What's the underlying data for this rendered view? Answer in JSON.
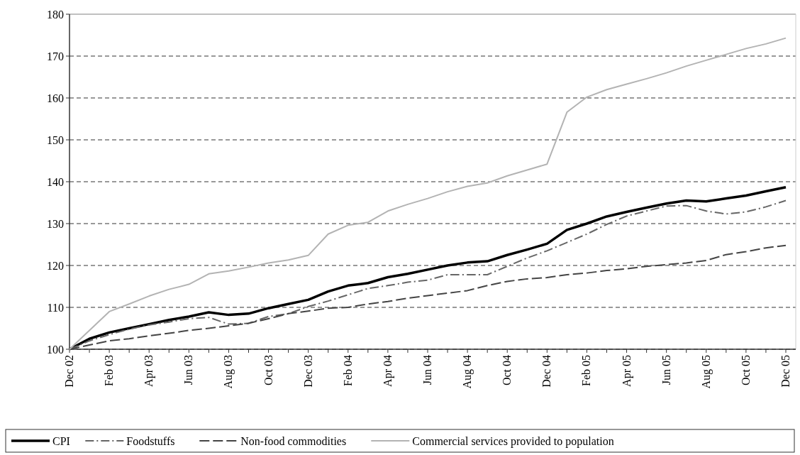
{
  "chart_data": {
    "type": "line",
    "categories": [
      "Dec 02",
      null,
      "Feb 03",
      null,
      "Apr 03",
      null,
      "Jun 03",
      null,
      "Aug 03",
      null,
      "Oct 03",
      null,
      "Dec 03",
      null,
      "Feb 04",
      null,
      "Apr 04",
      null,
      "Jun 04",
      null,
      "Aug 04",
      null,
      "Oct 04",
      null,
      "Dec 04",
      null,
      "Feb 05",
      null,
      "Apr 05",
      null,
      "Jun 05",
      null,
      "Aug 05",
      null,
      "Oct 05",
      null,
      "Dec 05"
    ],
    "series": [
      {
        "name": "CPI",
        "color": "#000000",
        "line_style": "solid",
        "values": [
          100,
          102.5,
          104,
          105,
          106,
          107,
          107.8,
          108.8,
          108.2,
          108.5,
          109.8,
          110.8,
          111.8,
          113.8,
          115.2,
          115.8,
          117.2,
          118,
          119,
          120,
          120.7,
          121,
          122.5,
          123.8,
          125.2,
          128.5,
          130,
          131.7,
          132.8,
          133.8,
          134.8,
          135.5,
          135.3,
          136,
          136.7,
          137.7,
          138.7
        ]
      },
      {
        "name": "Foodstuffs",
        "color": "#666666",
        "line_style": "dashdot",
        "values": [
          100,
          102,
          103.5,
          104.8,
          105.8,
          106.5,
          107.3,
          107.6,
          106,
          106.2,
          107.8,
          108.5,
          110.2,
          111.5,
          113,
          114.5,
          115.2,
          116,
          116.5,
          117.8,
          117.8,
          117.8,
          119.8,
          121.8,
          123.5,
          125.5,
          127.5,
          129.8,
          131.8,
          133,
          134.2,
          134.3,
          133,
          132.3,
          132.8,
          134,
          135.5
        ]
      },
      {
        "name": "Non-food commodities",
        "color": "#444444",
        "line_style": "dashed",
        "values": [
          100,
          101,
          102,
          102.5,
          103.2,
          103.8,
          104.5,
          105,
          105.6,
          106.2,
          107.3,
          108.5,
          109.1,
          109.8,
          110,
          110.8,
          111.4,
          112.2,
          112.8,
          113.4,
          114,
          115.2,
          116.2,
          116.8,
          117.1,
          117.8,
          118.2,
          118.8,
          119.2,
          119.8,
          120.2,
          120.6,
          121.2,
          122.6,
          123.3,
          124.2,
          124.8
        ]
      },
      {
        "name": "Commercial services provided to population",
        "color": "#b3b3b3",
        "line_style": "solid",
        "values": [
          100,
          104.5,
          109,
          110.8,
          112.7,
          114.3,
          115.5,
          118,
          118.7,
          119.6,
          120.6,
          121.3,
          122.4,
          127.5,
          129.6,
          130.3,
          133,
          134.6,
          136,
          137.6,
          138.9,
          139.7,
          141.4,
          142.8,
          144.2,
          156.6,
          160.2,
          162,
          163.3,
          164.6,
          166,
          167.6,
          169,
          170.4,
          171.8,
          172.9,
          174.3
        ]
      }
    ],
    "ylim": [
      100,
      180
    ],
    "yticks": [
      100,
      110,
      120,
      130,
      140,
      150,
      160,
      170,
      180
    ],
    "grid": "y",
    "legend": "bottom",
    "marker": "none"
  }
}
